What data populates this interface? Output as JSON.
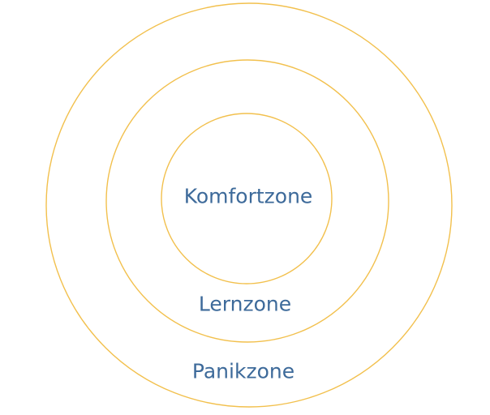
{
  "diagram": {
    "colors": {
      "ring": "#f2c04d",
      "label": "#3d6a9a",
      "background": "#ffffff"
    },
    "zones": [
      {
        "label": "Komfortzone"
      },
      {
        "label": "Lernzone"
      },
      {
        "label": "Panikzone"
      }
    ]
  }
}
